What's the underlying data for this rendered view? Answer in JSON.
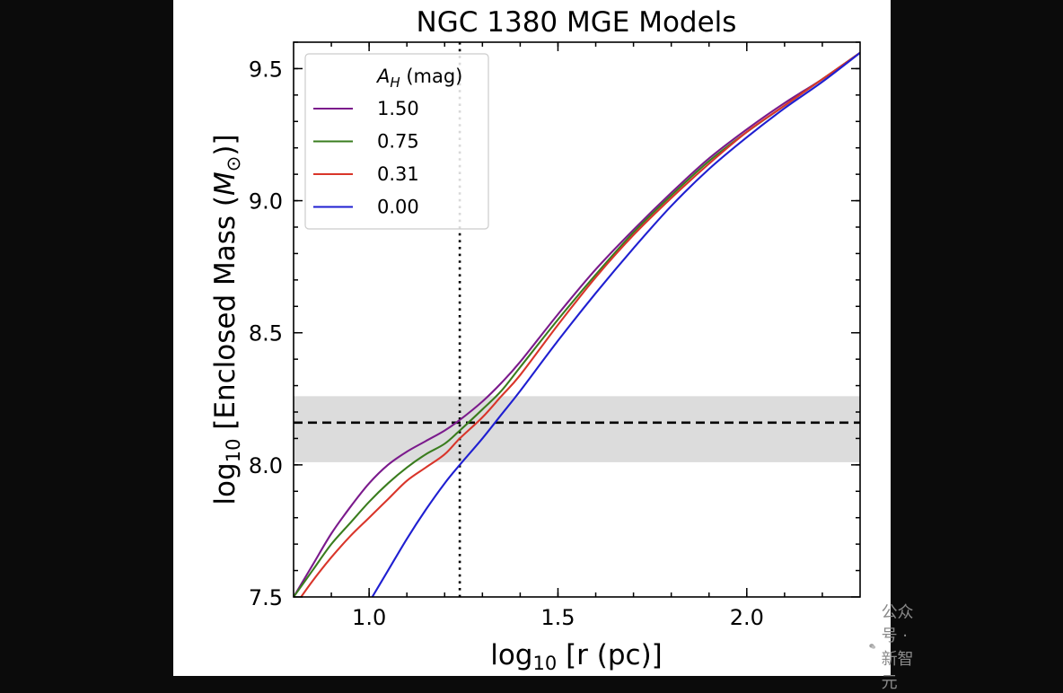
{
  "chart_data": {
    "type": "line",
    "title": "NGC 1380 MGE Models",
    "xlabel": {
      "prefix": "log",
      "sub": "10",
      "text": " [r (pc)]"
    },
    "ylabel": {
      "prefix": "log",
      "sub": "10",
      "text": " [Enclosed Mass (",
      "sym": "M",
      "symsub": "⊙",
      "suffix": ")]"
    },
    "xlim": [
      0.8,
      2.3
    ],
    "ylim": [
      7.5,
      9.6
    ],
    "xticks": [
      1.0,
      1.5,
      2.0
    ],
    "xtick_labels": [
      "1.0",
      "1.5",
      "2.0"
    ],
    "yticks": [
      7.5,
      8.0,
      8.5,
      9.0,
      9.5
    ],
    "ytick_labels": [
      "7.5",
      "8.0",
      "8.5",
      "9.0",
      "9.5"
    ],
    "legend": {
      "title_sym": "A",
      "title_sub": "H",
      "title_unit": " (mag)",
      "location": "top-left"
    },
    "series": [
      {
        "name": "1.50",
        "color": "#7b1a8c",
        "x": [
          0.8,
          0.85,
          0.9,
          0.95,
          1.0,
          1.05,
          1.1,
          1.15,
          1.2,
          1.24,
          1.3,
          1.35,
          1.4,
          1.5,
          1.6,
          1.7,
          1.8,
          1.9,
          2.0,
          2.1,
          2.2,
          2.3
        ],
        "y": [
          7.5,
          7.62,
          7.74,
          7.84,
          7.93,
          8.0,
          8.05,
          8.09,
          8.13,
          8.17,
          8.24,
          8.31,
          8.39,
          8.57,
          8.74,
          8.89,
          9.03,
          9.16,
          9.27,
          9.37,
          9.46,
          9.56
        ]
      },
      {
        "name": "0.75",
        "color": "#3a7d1e",
        "x": [
          0.8,
          0.85,
          0.9,
          0.95,
          1.0,
          1.05,
          1.1,
          1.15,
          1.2,
          1.24,
          1.3,
          1.35,
          1.4,
          1.5,
          1.6,
          1.7,
          1.8,
          1.9,
          2.0,
          2.1,
          2.2,
          2.3
        ],
        "y": [
          7.5,
          7.6,
          7.7,
          7.78,
          7.86,
          7.93,
          7.99,
          8.04,
          8.08,
          8.13,
          8.21,
          8.28,
          8.37,
          8.55,
          8.72,
          8.88,
          9.02,
          9.15,
          9.26,
          9.36,
          9.46,
          9.56
        ]
      },
      {
        "name": "0.31",
        "color": "#d9352a",
        "x": [
          0.8,
          0.85,
          0.9,
          0.95,
          1.0,
          1.05,
          1.1,
          1.15,
          1.2,
          1.24,
          1.3,
          1.35,
          1.4,
          1.5,
          1.6,
          1.7,
          1.8,
          1.9,
          2.0,
          2.1,
          2.2,
          2.3
        ],
        "y": [
          7.46,
          7.56,
          7.65,
          7.73,
          7.8,
          7.87,
          7.94,
          7.99,
          8.04,
          8.1,
          8.18,
          8.26,
          8.34,
          8.53,
          8.71,
          8.87,
          9.01,
          9.14,
          9.26,
          9.36,
          9.46,
          9.56
        ]
      },
      {
        "name": "0.00",
        "color": "#1f1fd1",
        "x": [
          1.0,
          1.05,
          1.1,
          1.15,
          1.2,
          1.24,
          1.3,
          1.35,
          1.4,
          1.5,
          1.6,
          1.7,
          1.8,
          1.9,
          2.0,
          2.1,
          2.2,
          2.3
        ],
        "y": [
          7.48,
          7.6,
          7.72,
          7.83,
          7.93,
          8.0,
          8.1,
          8.19,
          8.28,
          8.47,
          8.65,
          8.82,
          8.98,
          9.12,
          9.24,
          9.35,
          9.45,
          9.56
        ]
      }
    ],
    "hline": {
      "y": 8.16,
      "style": "dashed",
      "color": "#000000"
    },
    "hband": {
      "y0": 8.01,
      "y1": 8.26,
      "color": "#dcdcdc"
    },
    "vline": {
      "x": 1.24,
      "style": "dotted",
      "color": "#000000"
    }
  },
  "watermark": {
    "text": "公众号 · 新智元",
    "icon": "wechat-icon",
    "color": "#8a8a8a"
  }
}
